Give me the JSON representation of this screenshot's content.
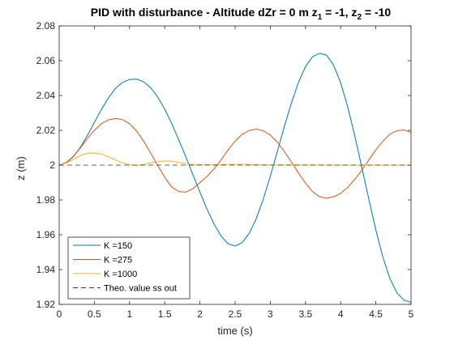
{
  "chart_data": {
    "type": "line",
    "title_parts": {
      "main": "PID with disturbance - Altitude dZr = 0 m  z",
      "sub1": "1",
      "mid": " = -1, z",
      "sub2": "2",
      "end": " = -10"
    },
    "xlabel": "time (s)",
    "ylabel": "z (m)",
    "xlim": [
      0,
      5
    ],
    "ylim": [
      1.92,
      2.08
    ],
    "xticks": [
      0,
      0.5,
      1,
      1.5,
      2,
      2.5,
      3,
      3.5,
      4,
      4.5,
      5
    ],
    "xtick_labels": [
      "0",
      "0.5",
      "1",
      "1.5",
      "2",
      "2.5",
      "3",
      "3.5",
      "4",
      "4.5",
      "5"
    ],
    "yticks": [
      1.92,
      1.94,
      1.96,
      1.98,
      2.0,
      2.02,
      2.04,
      2.06,
      2.08
    ],
    "ytick_labels": [
      "1.92",
      "1.94",
      "1.96",
      "1.98",
      "2",
      "2.02",
      "2.04",
      "2.06",
      "2.08"
    ],
    "grid": false,
    "legend_position": "bottom-left",
    "series": [
      {
        "name": "K =150",
        "color": "#0072BD",
        "style": "solid",
        "x": [
          0,
          0.1,
          0.2,
          0.3,
          0.4,
          0.5,
          0.6,
          0.7,
          0.8,
          0.9,
          1.0,
          1.1,
          1.2,
          1.3,
          1.4,
          1.5,
          1.6,
          1.7,
          1.8,
          1.9,
          2.0,
          2.1,
          2.2,
          2.3,
          2.4,
          2.5,
          2.6,
          2.7,
          2.8,
          2.9,
          3.0,
          3.1,
          3.2,
          3.3,
          3.4,
          3.5,
          3.6,
          3.7,
          3.8,
          3.9,
          4.0,
          4.1,
          4.2,
          4.3,
          4.4,
          4.5,
          4.6,
          4.7,
          4.8,
          4.9,
          5.0
        ],
        "y": [
          2.0,
          2.0013,
          2.0048,
          2.0102,
          2.017,
          2.0245,
          2.032,
          2.0387,
          2.0441,
          2.0476,
          2.0492,
          2.0494,
          2.0479,
          2.0445,
          2.0392,
          2.0322,
          2.0238,
          2.0145,
          2.0048,
          1.9945,
          1.9845,
          1.9748,
          1.9662,
          1.9593,
          1.9548,
          1.9535,
          1.9555,
          1.9608,
          1.9692,
          1.9804,
          1.9936,
          2.0078,
          2.0222,
          2.0358,
          2.0475,
          2.0566,
          2.0623,
          2.0642,
          2.0632,
          2.0574,
          2.0473,
          2.0335,
          2.017,
          1.9988,
          1.9805,
          1.9628,
          1.9471,
          1.9349,
          1.9266,
          1.9224,
          1.9212
        ]
      },
      {
        "name": "K =275",
        "color": "#D95319",
        "style": "solid",
        "x": [
          0,
          0.1,
          0.2,
          0.3,
          0.4,
          0.5,
          0.6,
          0.7,
          0.8,
          0.9,
          1.0,
          1.1,
          1.2,
          1.3,
          1.4,
          1.5,
          1.6,
          1.7,
          1.8,
          1.9,
          2.0,
          2.1,
          2.2,
          2.3,
          2.4,
          2.5,
          2.6,
          2.7,
          2.8,
          2.9,
          3.0,
          3.1,
          3.2,
          3.3,
          3.4,
          3.5,
          3.6,
          3.7,
          3.8,
          3.9,
          4.0,
          4.1,
          4.2,
          4.3,
          4.4,
          4.5,
          4.6,
          4.7,
          4.8,
          4.9,
          5.0
        ],
        "y": [
          2.0,
          2.0015,
          2.005,
          2.0098,
          2.0152,
          2.02,
          2.0238,
          2.026,
          2.0268,
          2.0262,
          2.0238,
          2.0196,
          2.0138,
          2.0069,
          1.9998,
          1.993,
          1.9874,
          1.9848,
          1.9845,
          1.9865,
          1.9899,
          1.9935,
          1.9978,
          2.003,
          2.0088,
          2.0138,
          2.0177,
          2.0199,
          2.0207,
          2.0198,
          2.0173,
          2.0132,
          2.0078,
          2.0018,
          1.9955,
          1.9897,
          1.9848,
          1.9818,
          1.981,
          1.9818,
          1.9838,
          1.9872,
          1.9918,
          1.997,
          2.003,
          2.0088,
          2.0138,
          2.0178,
          2.0198,
          2.0202,
          2.0188
        ]
      },
      {
        "name": "K =1000",
        "color": "#EDB120",
        "style": "solid",
        "x": [
          0,
          0.1,
          0.2,
          0.3,
          0.4,
          0.5,
          0.6,
          0.7,
          0.8,
          0.9,
          1.0,
          1.1,
          1.2,
          1.3,
          1.4,
          1.5,
          1.6,
          1.7,
          1.8,
          1.9,
          2.0,
          2.2,
          2.4,
          2.6,
          2.8,
          3.0,
          3.5,
          4.0,
          4.5,
          5.0
        ],
        "y": [
          2.0,
          2.0012,
          2.0033,
          2.0055,
          2.0068,
          2.007,
          2.0064,
          2.0048,
          2.003,
          2.0013,
          2.0002,
          1.9999,
          2.0003,
          2.0012,
          2.002,
          2.0024,
          2.0022,
          2.0016,
          2.0009,
          2.0004,
          2.0002,
          2.0002,
          2.0004,
          2.0004,
          2.0002,
          2.0001,
          2.0001,
          2.0,
          2.0,
          2.0
        ]
      },
      {
        "name": "Theo. value ss out",
        "color": "#333333",
        "style": "dashed",
        "x": [
          0,
          5
        ],
        "y": [
          2.0,
          2.0
        ]
      }
    ]
  }
}
